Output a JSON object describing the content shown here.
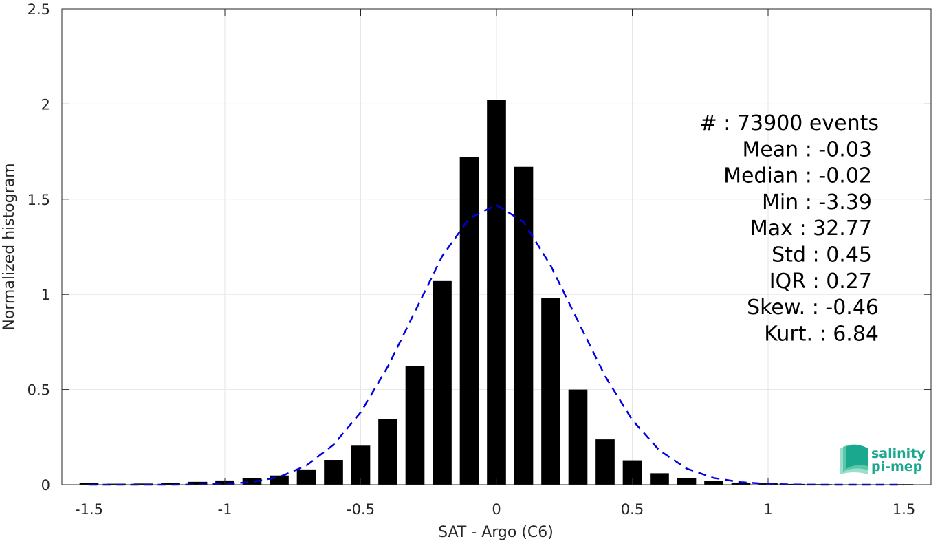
{
  "chart_data": {
    "type": "bar",
    "xlabel": "SAT - Argo (C6)",
    "ylabel": "Normalized histogram",
    "xlim": [
      -1.6,
      1.6
    ],
    "ylim": [
      0,
      2.5
    ],
    "xticks": [
      -1.5,
      -1,
      -0.5,
      0,
      0.5,
      1,
      1.5
    ],
    "xtick_labels": [
      "-1.5",
      "-1",
      "-0.5",
      "0",
      "0.5",
      "1",
      "1.5"
    ],
    "yticks": [
      0,
      0.5,
      1,
      1.5,
      2,
      2.5
    ],
    "ytick_labels": [
      "0",
      "0.5",
      "1",
      "1.5",
      "2",
      "2.5"
    ],
    "grid": true,
    "bar_color": "#000000",
    "bar_width": 0.07,
    "bins": [
      {
        "x": -1.5,
        "y": 0.008
      },
      {
        "x": -1.4,
        "y": 0.005
      },
      {
        "x": -1.3,
        "y": 0.006
      },
      {
        "x": -1.2,
        "y": 0.01
      },
      {
        "x": -1.1,
        "y": 0.015
      },
      {
        "x": -1.0,
        "y": 0.022
      },
      {
        "x": -0.9,
        "y": 0.033
      },
      {
        "x": -0.8,
        "y": 0.048
      },
      {
        "x": -0.7,
        "y": 0.08
      },
      {
        "x": -0.6,
        "y": 0.13
      },
      {
        "x": -0.5,
        "y": 0.205
      },
      {
        "x": -0.4,
        "y": 0.345
      },
      {
        "x": -0.3,
        "y": 0.625
      },
      {
        "x": -0.2,
        "y": 1.07
      },
      {
        "x": -0.1,
        "y": 1.72
      },
      {
        "x": 0.0,
        "y": 2.02
      },
      {
        "x": 0.1,
        "y": 1.67
      },
      {
        "x": 0.2,
        "y": 0.98
      },
      {
        "x": 0.3,
        "y": 0.5
      },
      {
        "x": 0.4,
        "y": 0.238
      },
      {
        "x": 0.5,
        "y": 0.128
      },
      {
        "x": 0.6,
        "y": 0.06
      },
      {
        "x": 0.7,
        "y": 0.035
      },
      {
        "x": 0.8,
        "y": 0.02
      },
      {
        "x": 0.9,
        "y": 0.011
      },
      {
        "x": 1.0,
        "y": 0.007
      },
      {
        "x": 1.1,
        "y": 0.004
      },
      {
        "x": 1.2,
        "y": 0.003
      },
      {
        "x": 1.3,
        "y": 0.002
      },
      {
        "x": 1.4,
        "y": 0.002
      },
      {
        "x": 1.5,
        "y": 0.003
      }
    ],
    "fit_curve": {
      "style": "dashed",
      "color": "#0000e0",
      "x": [
        -1.5,
        -1.4,
        -1.3,
        -1.2,
        -1.1,
        -1.0,
        -0.9,
        -0.8,
        -0.7,
        -0.6,
        -0.5,
        -0.4,
        -0.3,
        -0.2,
        -0.1,
        0.0,
        0.1,
        0.2,
        0.3,
        0.4,
        0.5,
        0.6,
        0.7,
        0.8,
        0.9,
        1.0,
        1.1,
        1.2,
        1.3,
        1.4,
        1.5
      ],
      "y": [
        0.0,
        0.0,
        0.0,
        0.0,
        0.001,
        0.004,
        0.014,
        0.04,
        0.1,
        0.21,
        0.38,
        0.62,
        0.91,
        1.2,
        1.4,
        1.47,
        1.38,
        1.15,
        0.86,
        0.57,
        0.34,
        0.18,
        0.085,
        0.035,
        0.013,
        0.004,
        0.001,
        0.0,
        0.0,
        0.0,
        0.0
      ]
    },
    "annotations": [
      "#  : 73900 events",
      "Mean : -0.03",
      "Median : -0.02",
      "Min : -3.39",
      "Max : 32.77",
      "Std : 0.45",
      "IQR : 0.27",
      "Skew. : -0.46",
      "Kurt. : 6.84"
    ]
  },
  "logo": {
    "line1": "salinity",
    "line2": "pi-mep",
    "colors": [
      "#1aa88e",
      "#5cc6a8",
      "#9adfc8"
    ]
  }
}
